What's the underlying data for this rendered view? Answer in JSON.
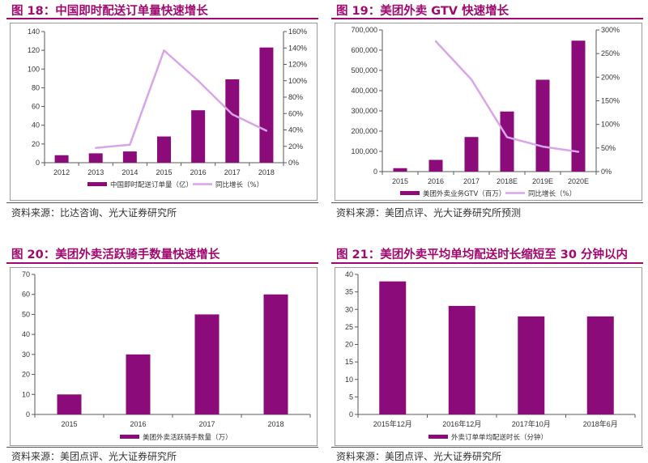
{
  "colors": {
    "bar": "#8b0b7b",
    "line": "#d8a6e8",
    "accent": "#a0096e",
    "axis": "#595959"
  },
  "panels": [
    {
      "title": "图 18：中国即时配送订单量快速增长",
      "source": "资料来源：比达咨询、光大证券研究所"
    },
    {
      "title": "图 19：美团外卖 GTV 快速增长",
      "source": "资料来源：美团点评、光大证券研究所预测"
    },
    {
      "title": "图 20：美团外卖活跃骑手数量快速增长",
      "source": "资料来源：美团点评、光大证券研究所"
    },
    {
      "title": "图 21：美团外卖平均单均配送时长缩短至 30 分钟以内",
      "source": "资料来源：美团点评、光大证券研究所"
    }
  ],
  "chart_data": [
    {
      "type": "bar",
      "categories": [
        "2012",
        "2013",
        "2014",
        "2015",
        "2016",
        "2017",
        "2018"
      ],
      "series": [
        {
          "name": "中国即时配送订单量（亿）",
          "type": "bar",
          "axis": "left",
          "values": [
            8,
            10,
            12,
            28,
            56,
            89,
            123
          ]
        },
        {
          "name": "同比增长（%）",
          "type": "line",
          "axis": "right",
          "values": [
            null,
            18,
            22,
            137,
            100,
            59,
            39
          ]
        }
      ],
      "ylim": [
        0,
        140
      ],
      "yticks": [
        "0",
        "20",
        "40",
        "60",
        "80",
        "100",
        "120",
        "140"
      ],
      "y2lim": [
        0,
        160
      ],
      "y2ticks": [
        "0%",
        "20%",
        "40%",
        "60%",
        "80%",
        "100%",
        "120%",
        "140%",
        "160%"
      ],
      "grid": false,
      "legend": "bottom"
    },
    {
      "type": "bar",
      "categories": [
        "2015",
        "2016",
        "2017",
        "2018E",
        "2019E",
        "2020E"
      ],
      "series": [
        {
          "name": "美团外卖业务GTV（百万）",
          "type": "bar",
          "axis": "left",
          "values": [
            17000,
            58000,
            171000,
            297000,
            454000,
            647000
          ]
        },
        {
          "name": "同比增长（%）",
          "type": "line",
          "axis": "right",
          "values": [
            null,
            276,
            195,
            73,
            53,
            42
          ]
        }
      ],
      "ylim": [
        0,
        700000
      ],
      "yticks": [
        "0",
        "100,000",
        "200,000",
        "300,000",
        "400,000",
        "500,000",
        "600,000",
        "700,000"
      ],
      "y2lim": [
        0,
        300
      ],
      "y2ticks": [
        "0%",
        "50%",
        "100%",
        "150%",
        "200%",
        "250%",
        "300%"
      ],
      "grid": false,
      "legend": "bottom"
    },
    {
      "type": "bar",
      "categories": [
        "2015",
        "2016",
        "2017",
        "2018"
      ],
      "series": [
        {
          "name": "美团外卖活跃骑手数量（万）",
          "type": "bar",
          "axis": "left",
          "values": [
            10,
            30,
            50,
            60
          ]
        }
      ],
      "ylim": [
        0,
        70
      ],
      "yticks": [
        "0",
        "10",
        "20",
        "30",
        "40",
        "50",
        "60",
        "70"
      ],
      "grid": false,
      "legend": "bottom"
    },
    {
      "type": "bar",
      "categories": [
        "2015年12月",
        "2016年12月",
        "2017年10月",
        "2018年6月"
      ],
      "series": [
        {
          "name": "外卖订单单均配送时长（分钟）",
          "type": "bar",
          "axis": "left",
          "values": [
            38,
            31,
            28,
            28
          ]
        }
      ],
      "ylim": [
        0,
        40
      ],
      "yticks": [
        "0",
        "5",
        "10",
        "15",
        "20",
        "25",
        "30",
        "35",
        "40"
      ],
      "grid": false,
      "legend": "bottom"
    }
  ]
}
